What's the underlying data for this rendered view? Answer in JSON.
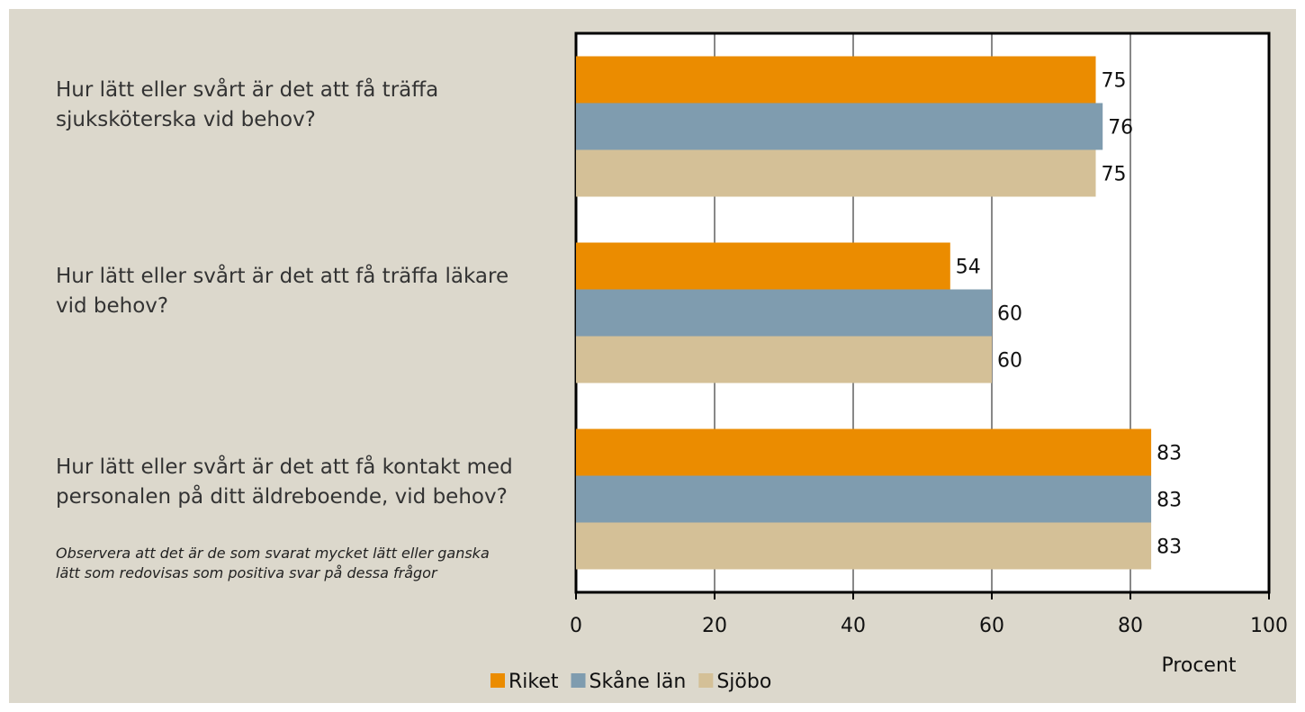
{
  "chart_data": {
    "type": "barh",
    "categories": [
      "Hur lätt eller svårt är det att få träffa sjuksköterska vid behov?",
      "Hur lätt eller svårt är det att få träffa läkare vid behov?",
      "Hur lätt eller svårt är det att få kontakt med personalen på ditt äldreboende, vid behov?"
    ],
    "annotation": "Observera att det är de som svarat mycket lätt eller ganska lätt som redovisas som positiva svar på dessa frågor",
    "xlabel": "Procent",
    "series": [
      {
        "name": "Riket",
        "color": "#eb8c00",
        "values": [
          75,
          54,
          83
        ]
      },
      {
        "name": "Skåne län",
        "color": "#7f9caf",
        "values": [
          76,
          60,
          83
        ]
      },
      {
        "name": "Sjöbo",
        "color": "#d4c097",
        "values": [
          75,
          60,
          83
        ]
      }
    ],
    "xlim": [
      0,
      100
    ],
    "xticks": [
      0,
      20,
      40,
      60,
      80,
      100
    ],
    "grid": true,
    "legend": "bottom"
  }
}
